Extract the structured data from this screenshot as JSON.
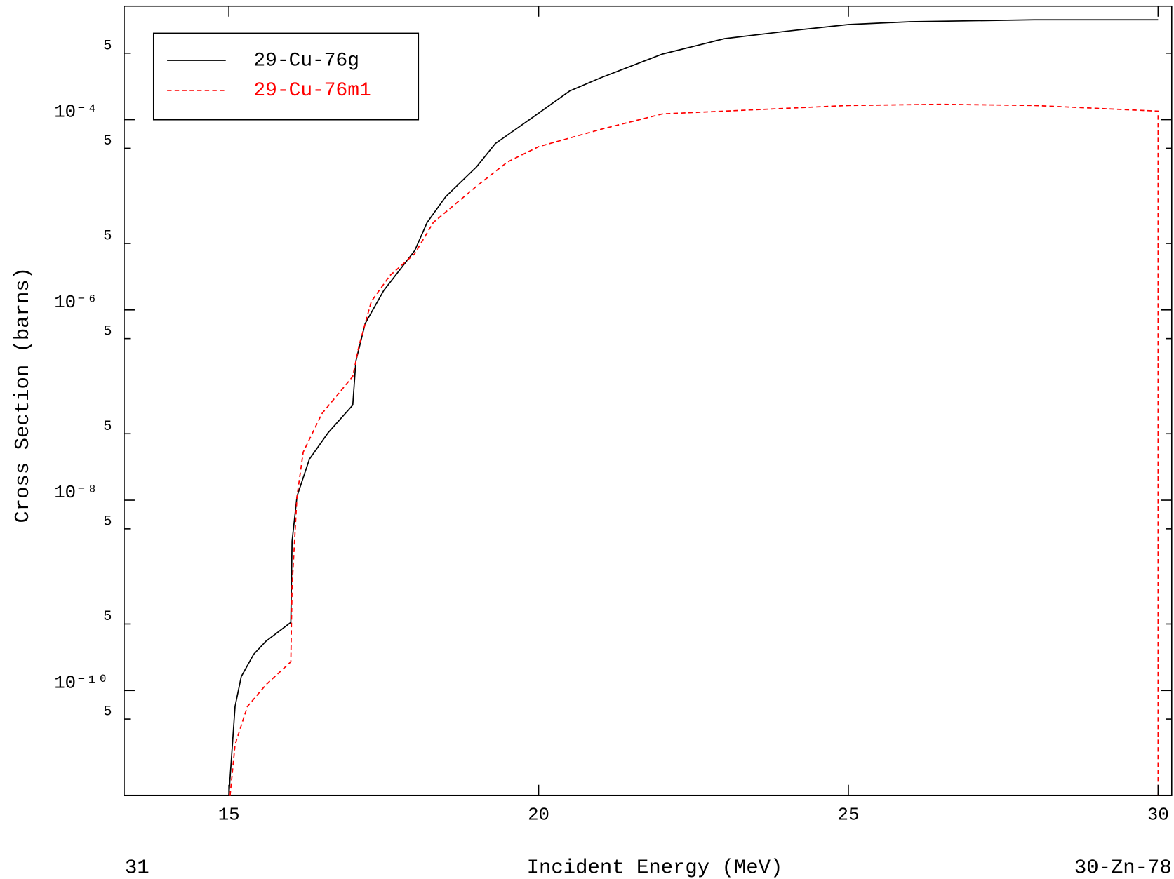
{
  "chart_data": {
    "type": "line",
    "x_label": "Incident Energy (MeV)",
    "y_label": "Cross Section (barns)",
    "left_note": "31",
    "right_note": "30-Zn-78",
    "log_y": true,
    "grid": false,
    "legend": "upper left",
    "xlim": [
      13.31,
      30.22
    ],
    "xticks": [
      15,
      20,
      25,
      30
    ],
    "ylim": [
      7.9e-12,
      0.00156
    ],
    "yticks": [
      {
        "value": 0.0005,
        "label": "5"
      },
      {
        "value": 0.0001,
        "label": "10⁻⁴"
      },
      {
        "value": 5e-05,
        "label": "5"
      },
      {
        "value": 5e-06,
        "label": "5"
      },
      {
        "value": 1e-06,
        "label": "10⁻⁶"
      },
      {
        "value": 5e-07,
        "label": "5"
      },
      {
        "value": 5e-08,
        "label": "5"
      },
      {
        "value": 1e-08,
        "label": "10⁻⁸"
      },
      {
        "value": 5e-09,
        "label": "5"
      },
      {
        "value": 5e-10,
        "label": "5"
      },
      {
        "value": 1e-10,
        "label": "10⁻¹⁰"
      },
      {
        "value": 5e-11,
        "label": "5"
      }
    ],
    "series": [
      {
        "name": "29-Cu-76g",
        "color": "#000000",
        "dash": "solid",
        "x": [
          15.0,
          15.1,
          15.2,
          15.4,
          15.6,
          16.0,
          16.02,
          16.1,
          16.3,
          16.6,
          17.0,
          17.05,
          17.2,
          17.5,
          18.0,
          18.2,
          18.5,
          19.0,
          19.3,
          20.0,
          20.5,
          21,
          22,
          23,
          24,
          25,
          26,
          28,
          30
        ],
        "values": [
          7.9e-12,
          6.8e-11,
          1.4e-10,
          2.4e-10,
          3.3e-10,
          5.2e-10,
          3.7e-09,
          1.1e-08,
          2.7e-08,
          5.1e-08,
          1e-07,
          2.9e-07,
          7.2e-07,
          1.6e-06,
          4.2e-06,
          8.3e-06,
          1.55e-05,
          3.2e-05,
          5.6e-05,
          0.000117,
          0.0002,
          0.000275,
          0.00049,
          0.00071,
          0.00085,
          0.001,
          0.00107,
          0.00112,
          0.00112
        ]
      },
      {
        "name": "29-Cu-76m1",
        "color": "#ff0000",
        "dash": "dashed",
        "x": [
          15.02,
          15.1,
          15.3,
          15.6,
          16.0,
          16.02,
          16.1,
          16.2,
          16.5,
          17.0,
          17.1,
          17.3,
          17.6,
          18.0,
          18.3,
          19.0,
          19.5,
          20,
          21,
          22,
          23,
          25,
          26.5,
          28,
          30,
          30
        ],
        "values": [
          7.9e-12,
          2.7e-11,
          6.8e-11,
          1.15e-10,
          2e-10,
          1.23e-09,
          1.1e-08,
          3.2e-08,
          8.1e-08,
          2e-07,
          4.2e-07,
          1.23e-06,
          2.3e-06,
          3.9e-06,
          8.3e-06,
          2e-05,
          3.6e-05,
          5.2e-05,
          7.9e-05,
          0.000115,
          0.000123,
          0.000141,
          0.000145,
          0.000141,
          0.000123,
          7.9e-12
        ]
      }
    ]
  }
}
